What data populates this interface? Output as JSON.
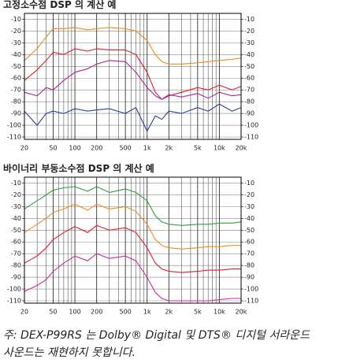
{
  "chart_data": [
    {
      "type": "line",
      "title": "고정소수점 DSP 의 계산 예",
      "xscale": "log",
      "grid": true,
      "x": [
        20,
        30,
        40,
        50,
        70,
        100,
        150,
        200,
        300,
        500,
        700,
        1000,
        1300,
        1600,
        2000,
        3000,
        5000,
        7000,
        10000,
        15000,
        20000
      ],
      "xlim": [
        20,
        20000
      ],
      "xticks": [
        20,
        50,
        100,
        200,
        500,
        {
          "value": 1000,
          "label": "1k"
        },
        {
          "value": 2000,
          "label": "2k"
        },
        {
          "value": 5000,
          "label": "5k"
        },
        {
          "value": 10000,
          "label": "10k"
        },
        {
          "value": 20000,
          "label": "20k"
        }
      ],
      "xminor": [
        30,
        40,
        60,
        70,
        80,
        90,
        300,
        400,
        600,
        700,
        800,
        900,
        3000,
        4000,
        6000,
        7000,
        8000,
        9000
      ],
      "ylim": [
        -112,
        -5
      ],
      "yticks": [
        -10,
        -20,
        -30,
        -40,
        -50,
        -60,
        -70,
        -80,
        -90,
        -100,
        -110
      ],
      "series": [
        {
          "color": "#f08a1c",
          "values": [
            -45,
            -35,
            -25,
            -18,
            -18,
            -17,
            -19,
            -18,
            -17,
            -18,
            -20,
            -28,
            -40,
            -46,
            -48,
            -48,
            -47,
            -46,
            -45,
            -44,
            -43
          ]
        },
        {
          "color": "#e01e2a",
          "values": [
            -62,
            -53,
            -45,
            -38,
            -40,
            -35,
            -37,
            -35,
            -36,
            -36,
            -40,
            -55,
            -72,
            -78,
            -75,
            -72,
            -68,
            -70,
            -66,
            -70,
            -67
          ]
        },
        {
          "color": "#b0239a",
          "values": [
            -72,
            -75,
            -68,
            -70,
            -62,
            -55,
            -52,
            -48,
            -45,
            -46,
            -55,
            -68,
            -75,
            -78,
            -74,
            -76,
            -73,
            -77,
            -72,
            -75,
            -74
          ]
        },
        {
          "color": "#2b3ea0",
          "values": [
            -88,
            -100,
            -90,
            -88,
            -90,
            -86,
            -88,
            -87,
            -86,
            -90,
            -85,
            -105,
            -92,
            -95,
            -88,
            -90,
            -85,
            -88,
            -82,
            -88,
            -85
          ]
        }
      ]
    },
    {
      "type": "line",
      "title": "바이너리 부동소수점 DSP 의 계산 예",
      "xscale": "log",
      "grid": true,
      "x": [
        20,
        30,
        40,
        50,
        70,
        100,
        150,
        200,
        300,
        500,
        700,
        1000,
        1300,
        1600,
        2000,
        3000,
        5000,
        7000,
        10000,
        15000,
        20000
      ],
      "xlim": [
        20,
        20000
      ],
      "xticks": [
        20,
        50,
        100,
        200,
        500,
        {
          "value": 1000,
          "label": "1k"
        },
        {
          "value": 2000,
          "label": "2k"
        },
        {
          "value": 5000,
          "label": "5k"
        },
        {
          "value": 10000,
          "label": "10k"
        },
        {
          "value": 20000,
          "label": "20k"
        }
      ],
      "xminor": [
        30,
        40,
        60,
        70,
        80,
        90,
        300,
        400,
        600,
        700,
        800,
        900,
        3000,
        4000,
        6000,
        7000,
        8000,
        9000
      ],
      "ylim": [
        -112,
        -5
      ],
      "yticks": [
        -10,
        -20,
        -30,
        -40,
        -50,
        -60,
        -70,
        -80,
        -90,
        -100,
        -110
      ],
      "series": [
        {
          "color": "#2aa33a",
          "values": [
            -32,
            -25,
            -20,
            -16,
            -14,
            -13,
            -17,
            -13,
            -18,
            -15,
            -18,
            -25,
            -38,
            -43,
            -45,
            -46,
            -45,
            -45,
            -44,
            -44,
            -43
          ]
        },
        {
          "color": "#f08a1c",
          "values": [
            -52,
            -45,
            -40,
            -35,
            -32,
            -28,
            -33,
            -28,
            -32,
            -30,
            -34,
            -45,
            -58,
            -63,
            -65,
            -66,
            -65,
            -64,
            -64,
            -63,
            -63
          ]
        },
        {
          "color": "#e01e2a",
          "values": [
            -78,
            -72,
            -65,
            -58,
            -52,
            -47,
            -52,
            -46,
            -50,
            -48,
            -52,
            -65,
            -78,
            -83,
            -85,
            -86,
            -85,
            -84,
            -84,
            -83,
            -83
          ]
        },
        {
          "color": "#d6269e",
          "values": [
            -102,
            -97,
            -92,
            -85,
            -78,
            -72,
            -76,
            -70,
            -74,
            -72,
            -76,
            -90,
            -103,
            -108,
            -110,
            -110,
            -110,
            -110,
            -109,
            -108,
            -108
          ]
        }
      ]
    }
  ],
  "footnote": [
    "주: DEX-P99RS 는 Dolby® Digital 및 DTS® 디지털 서라운드",
    "사운드는 재현하지 못합니다."
  ]
}
